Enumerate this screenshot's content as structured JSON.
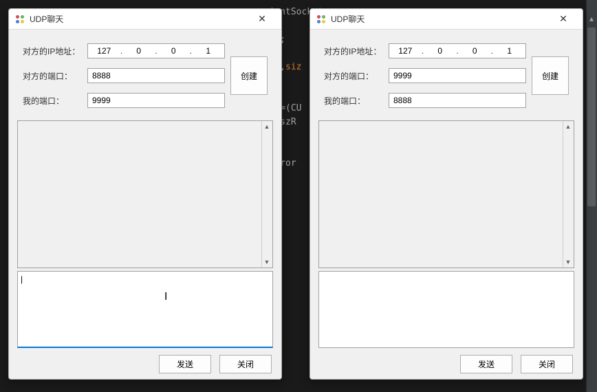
{
  "background_code": [
    "                                                 ientSocket",
    "",
    "                                                 ss;",
    "",
    "                                                Msg,siz",
    "",
    "",
    "                                                Dlg=(CU",
    "                                               age(szR",
    "",
    "",
    "                                               (nError"
  ],
  "window1": {
    "title": "UDP聊天",
    "labels": {
      "peer_ip": "对方的IP地址：",
      "peer_port": "对方的端口：",
      "my_port": "我的端口："
    },
    "values": {
      "ip": [
        "127",
        "0",
        "0",
        "1"
      ],
      "peer_port": "8888",
      "my_port": "9999"
    },
    "buttons": {
      "create": "创建",
      "send": "发送",
      "close": "关闭"
    },
    "input_focused": true
  },
  "window2": {
    "title": "UDP聊天",
    "labels": {
      "peer_ip": "对方的IP地址：",
      "peer_port": "对方的端口：",
      "my_port": "我的端口："
    },
    "values": {
      "ip": [
        "127",
        "0",
        "0",
        "1"
      ],
      "peer_port": "9999",
      "my_port": "8888"
    },
    "buttons": {
      "create": "创建",
      "send": "发送",
      "close": "关闭"
    },
    "input_focused": false
  }
}
